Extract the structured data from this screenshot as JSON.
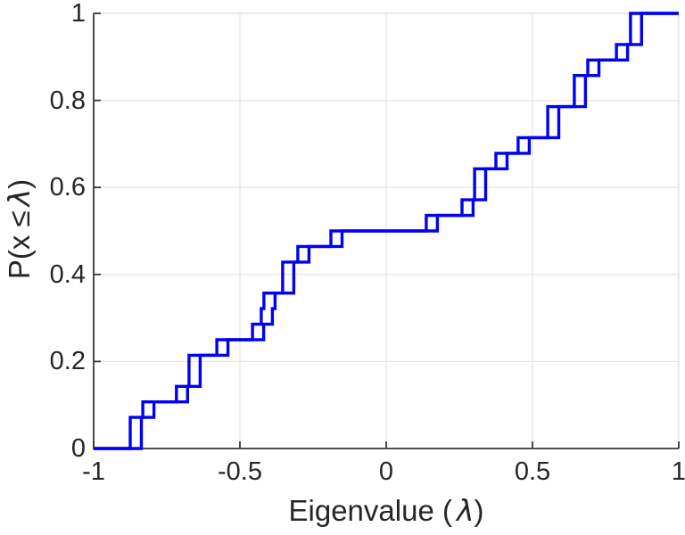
{
  "figure": {
    "background": "#ffffff",
    "kind": "MATLAB-style empirical CDF plot of eigenvalues"
  },
  "axes": {
    "xlabel": {
      "prefix": "Eigenvalue (",
      "symbol": "λ",
      "suffix": ")"
    },
    "ylabel": {
      "prefix": "P(x ≤",
      "symbol": "λ",
      "suffix": ")"
    },
    "x_ticks": [
      {
        "value": -1,
        "label": "-1"
      },
      {
        "value": -0.5,
        "label": "-0.5"
      },
      {
        "value": 0,
        "label": "0"
      },
      {
        "value": 0.5,
        "label": "0.5"
      },
      {
        "value": 1,
        "label": "1"
      }
    ],
    "y_ticks": [
      {
        "value": 0,
        "label": "0"
      },
      {
        "value": 0.2,
        "label": "0.2"
      },
      {
        "value": 0.4,
        "label": "0.4"
      },
      {
        "value": 0.6,
        "label": "0.6"
      },
      {
        "value": 0.8,
        "label": "0.8"
      },
      {
        "value": 1,
        "label": "1"
      }
    ],
    "colors": {
      "axis": "#363636",
      "tick_text": "#262626",
      "grid": "#e6e6e6",
      "box": "#dedede"
    }
  },
  "chart_data": {
    "type": "line",
    "subtype": "ecdf-stairs",
    "title": "",
    "xlabel": "Eigenvalue ( λ)",
    "ylabel": "P(x ≤ λ)",
    "xlim": [
      -1,
      1
    ],
    "ylim": [
      0,
      1
    ],
    "grid": "on",
    "legend": "none",
    "line_color": "#0000f5",
    "line_width": 3.4,
    "n_points_per_series": 28,
    "step_size": 0.0357,
    "description": "Empirical CDF staircase (28 steps of 1/28) drawn as two overlaid stair curves offset by ~0.038 in λ, producing small hollow-square features at every jump.",
    "series": [
      {
        "name": "ecdf-primary",
        "jumps": [
          -0.875,
          -0.875,
          -0.832,
          -0.717,
          -0.674,
          -0.674,
          -0.579,
          -0.457,
          -0.427,
          -0.418,
          -0.354,
          -0.354,
          -0.302,
          -0.189,
          0.137,
          0.259,
          0.302,
          0.302,
          0.375,
          0.451,
          0.552,
          0.552,
          0.643,
          0.643,
          0.689,
          0.787,
          0.835,
          0.835
        ]
      },
      {
        "name": "ecdf-offset",
        "jumps": [
          -0.837,
          -0.837,
          -0.794,
          -0.679,
          -0.636,
          -0.636,
          -0.541,
          -0.419,
          -0.389,
          -0.38,
          -0.316,
          -0.316,
          -0.264,
          -0.151,
          0.175,
          0.297,
          0.34,
          0.34,
          0.413,
          0.489,
          0.59,
          0.59,
          0.681,
          0.681,
          0.727,
          0.825,
          0.873,
          0.873
        ]
      }
    ],
    "cdf_levels": "after k-th jump the curve sits at k/28, reaching 1.0 at the last jump"
  }
}
